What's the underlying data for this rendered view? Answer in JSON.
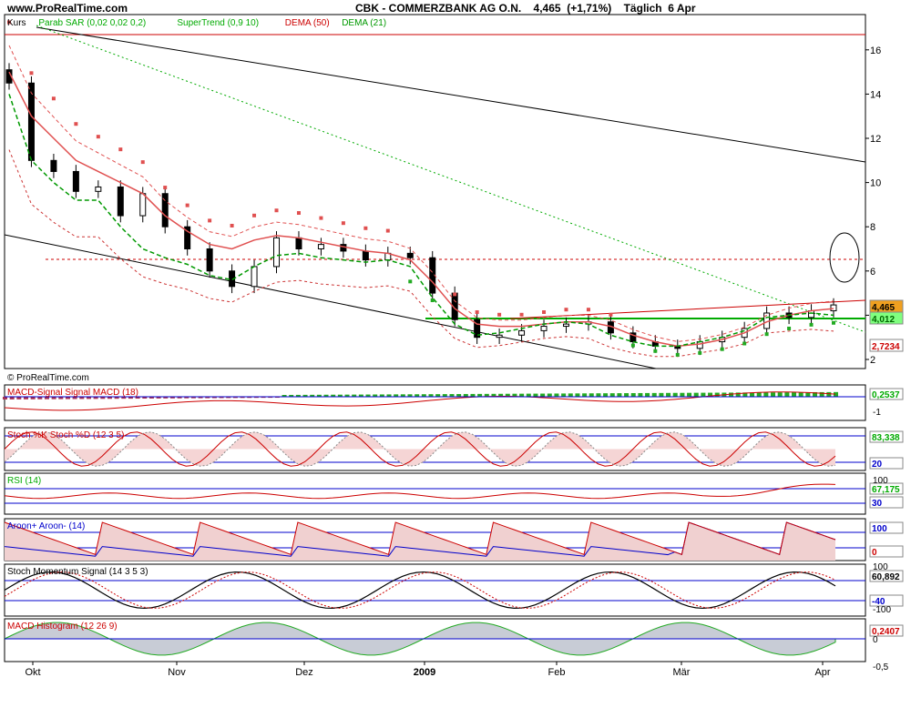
{
  "header": {
    "site": "www.ProRealTime.com",
    "title": "CBK - COMMERZBANK AG O.N.    4,465  (+1,71%)    Täglich  6 Apr",
    "copyright": "© ProRealTime.com"
  },
  "colors": {
    "price_red": "#cc0000",
    "green": "#00aa00",
    "dema_pink": "#e05050",
    "blue": "#0000cc",
    "fill_pink": "#f5d5d5",
    "fill_green": "#cfe8cf",
    "fill_blue": "#a8b8d8",
    "grey_fill": "#c8ccd6"
  },
  "x_axis_labels": [
    "Okt",
    "Nov",
    "Dez",
    "2009",
    "Feb",
    "Mär",
    "Apr"
  ],
  "panels": [
    {
      "id": "price",
      "legend": [
        {
          "text": "Kurs",
          "color": "#000000"
        },
        {
          "text": "Parab SAR (0,02 0,02 0,2)",
          "color": "#00aa00"
        },
        {
          "text": "SuperTrend (0,9 10)",
          "color": "#00aa00"
        },
        {
          "text": "DEMA (50)",
          "color": "#cc0000"
        },
        {
          "text": "DEMA (21)",
          "color": "#009900"
        }
      ],
      "y_ticks": [
        "16",
        "14",
        "12",
        "10",
        "8",
        "6",
        "4",
        "2"
      ],
      "value_badges": [
        {
          "text": "4,465",
          "bg": "#f0a020",
          "fg": "#000000"
        },
        {
          "text": "4,012",
          "bg": "#80ff80",
          "fg": "#006600"
        },
        {
          "text": "2,7234",
          "bg": "#ffffff",
          "fg": "#cc0000"
        }
      ]
    },
    {
      "id": "macd_signal",
      "legend": [
        {
          "text": "MACD-Signal Signal MACD (18)",
          "color": "#cc0000"
        }
      ],
      "y_ticks": [
        "-1"
      ],
      "value_badges": [
        {
          "text": "0,2537",
          "bg": "#ffffff",
          "fg": "#00aa00"
        }
      ]
    },
    {
      "id": "stoch",
      "legend": [
        {
          "text": "Stoch %K Stoch %D (12 3 5)",
          "color": "#cc0000"
        }
      ],
      "y_ticks": [
        "83,338",
        "20"
      ],
      "value_badges": [
        {
          "text": "83,338",
          "bg": "#ffffff",
          "fg": "#00aa00"
        },
        {
          "text": "20",
          "bg": "#ffffff",
          "fg": "#0000cc"
        }
      ]
    },
    {
      "id": "rsi",
      "legend": [
        {
          "text": "RSI (14)",
          "color": "#00aa00"
        }
      ],
      "y_ticks": [
        "100"
      ],
      "value_badges": [
        {
          "text": "67,175",
          "bg": "#ffffff",
          "fg": "#00aa00"
        },
        {
          "text": "30",
          "bg": "#ffffff",
          "fg": "#0000cc"
        }
      ]
    },
    {
      "id": "aroon",
      "legend": [
        {
          "text": "Aroon+ Aroon- (14)",
          "color": "#0000cc"
        }
      ],
      "y_ticks": [],
      "value_badges": [
        {
          "text": "100",
          "bg": "#ffffff",
          "fg": "#0000cc"
        },
        {
          "text": "0",
          "bg": "#ffffff",
          "fg": "#cc0000"
        }
      ]
    },
    {
      "id": "stoch_mom",
      "legend": [
        {
          "text": "Stoch Momentum Signal (14 3 5 3)",
          "color": "#000000"
        }
      ],
      "y_ticks": [
        "100",
        "-100"
      ],
      "value_badges": [
        {
          "text": "60,892",
          "bg": "#ffffff",
          "fg": "#000000"
        },
        {
          "text": "-40",
          "bg": "#ffffff",
          "fg": "#0000cc"
        }
      ]
    },
    {
      "id": "macd_hist",
      "legend": [
        {
          "text": "MACD Histogram (12 26 9)",
          "color": "#cc0000"
        }
      ],
      "y_ticks": [
        "0",
        "-0,5"
      ],
      "value_badges": [
        {
          "text": "0,2407",
          "bg": "#ffffff",
          "fg": "#cc0000"
        }
      ]
    }
  ],
  "chart_data": [
    {
      "type": "line",
      "title": "CBK - COMMERZBANK AG O.N.",
      "ylim": [
        1,
        17
      ],
      "x_labels": [
        "Okt",
        "Nov",
        "Dez",
        "2009",
        "Feb",
        "Mär",
        "Apr"
      ],
      "series": [
        {
          "name": "Kurs",
          "values": [
            14.5,
            11,
            10.5,
            9.6,
            9.8,
            8.5,
            9.5,
            8,
            7,
            6,
            5.3,
            6.2,
            7.5,
            7,
            7.2,
            6.9,
            6.5,
            6.8,
            6.6,
            5,
            3.8,
            3,
            3.1,
            3.3,
            3.5,
            3.6,
            3.7,
            3.2,
            2.8,
            2.6,
            2.5,
            2.8,
            3.0,
            3.4,
            4.1,
            3.9,
            4.2,
            4.465
          ]
        },
        {
          "name": "DEMA (50)",
          "values": [
            15,
            13,
            12,
            11,
            10.5,
            10,
            9.5,
            8.5,
            7.8,
            7.2,
            7,
            7.4,
            7.6,
            7.5,
            7.3,
            7.1,
            6.9,
            6.8,
            6.5,
            5.5,
            4.3,
            3.6,
            3.5,
            3.5,
            3.6,
            3.7,
            3.7,
            3.5,
            3.1,
            2.8,
            2.6,
            2.7,
            2.9,
            3.2,
            3.7,
            4.0,
            4.2,
            4.3
          ]
        },
        {
          "name": "DEMA (21)",
          "values": [
            14,
            11,
            10,
            9.2,
            9.2,
            8,
            7,
            6.6,
            6.3,
            5.8,
            5.6,
            6.2,
            6.7,
            6.8,
            6.6,
            6.5,
            6.4,
            6.5,
            6.2,
            4.8,
            3.6,
            3.1,
            3.2,
            3.4,
            3.6,
            3.7,
            3.6,
            3.1,
            2.8,
            2.6,
            2.6,
            2.8,
            3.0,
            3.3,
            3.9,
            4.0,
            4.1,
            4.0
          ]
        }
      ]
    }
  ]
}
